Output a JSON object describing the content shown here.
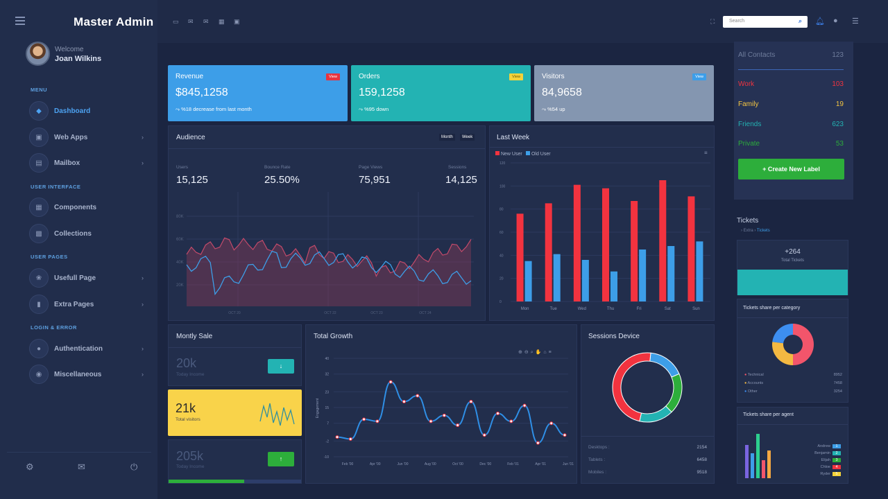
{
  "app": {
    "title": "Master Admin",
    "welcome": "Welcome",
    "user": "Joan Wilkins"
  },
  "sidebar": {
    "sections": {
      "menu": "MENU",
      "ui": "USER INTERFACE",
      "pages": "USER PAGES",
      "login": "LOGIN & ERROR"
    },
    "items": [
      {
        "label": "Dashboard",
        "icon": "layers-icon"
      },
      {
        "label": "Web Apps",
        "icon": "apps-icon"
      },
      {
        "label": "Mailbox",
        "icon": "mailbox-icon"
      },
      {
        "label": "Components",
        "icon": "components-icon"
      },
      {
        "label": "Collections",
        "icon": "collections-icon"
      },
      {
        "label": "Usefull Page",
        "icon": "page-icon"
      },
      {
        "label": "Extra Pages",
        "icon": "extra-icon"
      },
      {
        "label": "Authentication",
        "icon": "user-icon"
      },
      {
        "label": "Miscellaneous",
        "icon": "misc-icon"
      }
    ]
  },
  "search": {
    "placeholder": "Search"
  },
  "stats": [
    {
      "title": "Revenue",
      "value": "$845,1258",
      "sub": "%18 decrease from last month",
      "badge": "View",
      "color": "#3d9ee8",
      "badge_color": "#e8343e"
    },
    {
      "title": "Orders",
      "value": "159,1258",
      "sub": "%95 down",
      "badge": "View",
      "color": "#23b3b3",
      "badge_color": "#f4d23a"
    },
    {
      "title": "Visitors",
      "value": "84,9658",
      "sub": "%54 up",
      "badge": "View",
      "color": "#8496b0",
      "badge_color": "#3d9ee8"
    }
  ],
  "audience": {
    "title": "Audience",
    "tab_month": "Month",
    "tab_week": "Week",
    "kpis": [
      {
        "label": "Users",
        "value": "15,125"
      },
      {
        "label": "Bounce Rate",
        "value": "25.50%"
      },
      {
        "label": "Page Views",
        "value": "75,951"
      },
      {
        "label": "Sessions",
        "value": "14,125"
      }
    ]
  },
  "lastweek": {
    "title": "Last Week",
    "legend_new": "New User",
    "legend_old": "Old User"
  },
  "monthly": {
    "title": "Montly Sale",
    "a_value": "20k",
    "a_label": "Today Income",
    "b_value": "21k",
    "b_label": "Total visitors",
    "c_value": "205k",
    "c_label": "Today Income",
    "progress": 0.57
  },
  "growth": {
    "title": "Total Growth"
  },
  "sessions": {
    "title": "Sessions Device",
    "rows": [
      {
        "label": "Desktops :",
        "value": "2154"
      },
      {
        "label": "Tablets :",
        "value": "6458"
      },
      {
        "label": "Mobiles :",
        "value": "9518"
      }
    ]
  },
  "contacts": {
    "rows": [
      {
        "label": "All Contacts",
        "count": "123",
        "color": "#6f7d9c"
      },
      {
        "label": "Work",
        "count": "103",
        "color": "#f2333f"
      },
      {
        "label": "Family",
        "count": "19",
        "color": "#f4c542"
      },
      {
        "label": "Friends",
        "count": "623",
        "color": "#23b3b3"
      },
      {
        "label": "Private",
        "count": "53",
        "color": "#2dae3b"
      }
    ],
    "button": "+ Create New Label"
  },
  "tickets": {
    "title": "Tickets",
    "crumb1": "Extra",
    "crumb2": "Tickets",
    "total": "+264",
    "total_label": "Total Tickets",
    "cat_title": "Tickets share per category",
    "cat_rows": [
      {
        "label": "Technical",
        "value": "8952",
        "color": "#f2556b"
      },
      {
        "label": "Accounts",
        "value": "7458",
        "color": "#f4b942"
      },
      {
        "label": "Other",
        "value": "3254",
        "color": "#3d8ef0"
      }
    ],
    "agent_title": "Tickets share per agent",
    "agents": [
      {
        "name": "Andrew",
        "value": "1",
        "color": "#3d9ee8"
      },
      {
        "name": "Benjamin",
        "value": "2",
        "color": "#23b3b3"
      },
      {
        "name": "Elijah",
        "value": "3",
        "color": "#2dae3b"
      },
      {
        "name": "Chloe",
        "value": "4",
        "color": "#f2333f"
      },
      {
        "name": "Ryder",
        "value": "5",
        "color": "#f4d23a"
      }
    ]
  },
  "chart_data": [
    {
      "type": "area",
      "title": "Audience",
      "x_ticks": [
        "OCT 20",
        "OCT 22",
        "OCT 23",
        "OCT 24"
      ],
      "y_ticks": [
        "80K",
        "60K",
        "40K",
        "20K"
      ],
      "series": []
    },
    {
      "type": "bar",
      "title": "Last Week",
      "categories": [
        "Mon",
        "Tue",
        "Wed",
        "Thu",
        "Fri",
        "Sat",
        "Sun"
      ],
      "ylim": [
        0,
        120
      ],
      "y_ticks": [
        0,
        20,
        40,
        60,
        80,
        100,
        120
      ],
      "series": [
        {
          "name": "New User",
          "color": "#f2333f",
          "values": [
            76,
            85,
            101,
            98,
            87,
            105,
            91
          ]
        },
        {
          "name": "Old User",
          "color": "#3d9ee8",
          "values": [
            35,
            41,
            36,
            26,
            45,
            48,
            52
          ]
        }
      ]
    },
    {
      "type": "line",
      "title": "Total Growth",
      "ylabel": "Engagement",
      "x_ticks": [
        "Feb '00",
        "Apr '00",
        "Jun '00",
        "Aug '00",
        "Oct '00",
        "Dec '00",
        "Feb '01",
        "Apr '01",
        "Jun '01"
      ],
      "ylim": [
        -10,
        40
      ],
      "y_ticks": [
        40,
        32,
        23,
        15,
        7,
        -2,
        -10
      ],
      "values": [
        0,
        -1,
        9,
        8,
        28,
        18,
        21,
        8,
        11,
        6,
        18,
        1,
        12,
        8,
        16,
        -3,
        7,
        1
      ]
    },
    {
      "type": "pie",
      "title": "Sessions Device",
      "values": [
        {
          "label": "Desktops",
          "value": 2154,
          "color": "#3d9ee8"
        },
        {
          "label": "Tablets",
          "value": 6458,
          "color": "#2dae3b"
        },
        {
          "label": "Mobiles",
          "value": 9518,
          "color": "#23b3b3"
        }
      ],
      "extra": {
        "color": "#f2333f"
      }
    }
  ]
}
